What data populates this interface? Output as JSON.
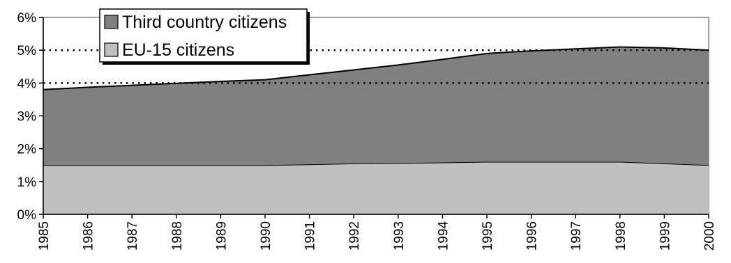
{
  "chart_data": {
    "type": "area",
    "stacked": true,
    "title": "",
    "xlabel": "",
    "ylabel": "",
    "ylim": [
      0,
      6
    ],
    "y_unit": "%",
    "y_ticks": [
      "0%",
      "1%",
      "2%",
      "3%",
      "4%",
      "5%",
      "6%"
    ],
    "x": [
      "1985",
      "1986",
      "1987",
      "1988",
      "1989",
      "1990",
      "1991",
      "1992",
      "1993",
      "1994",
      "1995",
      "1996",
      "1997",
      "1998",
      "1999",
      "2000"
    ],
    "series": [
      {
        "name": "EU-15 citizens",
        "color": "#c0c0c0",
        "values": [
          1.5,
          1.5,
          1.5,
          1.5,
          1.5,
          1.5,
          1.52,
          1.55,
          1.56,
          1.58,
          1.6,
          1.6,
          1.6,
          1.6,
          1.55,
          1.5
        ]
      },
      {
        "name": "Third country citizens",
        "color": "#808080",
        "values": [
          2.3,
          2.37,
          2.43,
          2.49,
          2.55,
          2.6,
          2.73,
          2.85,
          2.99,
          3.14,
          3.3,
          3.38,
          3.44,
          3.5,
          3.52,
          3.5
        ]
      }
    ],
    "dotted_reference_lines": [
      4,
      5
    ],
    "legend": {
      "position": "top-left",
      "order": [
        "Third country citizens",
        "EU-15 citizens"
      ]
    },
    "grid": false
  }
}
